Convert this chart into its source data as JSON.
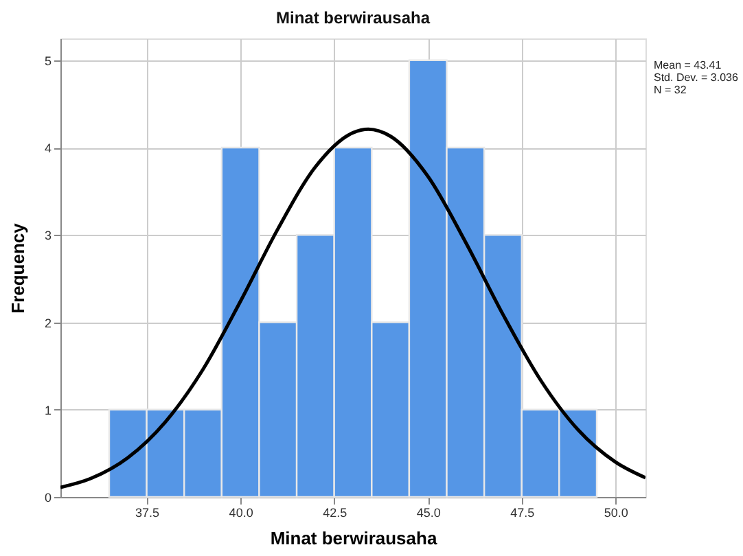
{
  "chart_data": {
    "type": "histogram",
    "title": "Minat berwirausaha",
    "xlabel": "Minat berwirausaha",
    "ylabel": "Frequency",
    "bins": [
      36.5,
      37.5,
      38.5,
      39.5,
      40.5,
      41.5,
      42.5,
      43.5,
      44.5,
      45.5,
      46.5,
      47.5,
      48.5,
      49.5
    ],
    "values": [
      1,
      1,
      1,
      4,
      2,
      3,
      4,
      2,
      5,
      4,
      3,
      1,
      1
    ],
    "color": "#5596e6",
    "series": [
      {
        "type": "line",
        "color": "#000000",
        "x": [
          35.2,
          36,
          37,
          38,
          39,
          40,
          41,
          42,
          43,
          43.41,
          44,
          45,
          46,
          47,
          48,
          49,
          50,
          50.8
        ],
        "values": [
          0.11,
          0.21,
          0.45,
          0.86,
          1.46,
          2.24,
          3.07,
          3.78,
          4.17,
          4.21,
          4.13,
          3.67,
          2.92,
          2.09,
          1.34,
          0.77,
          0.4,
          0.22
        ]
      }
    ],
    "xlim": [
      35.2,
      50.8
    ],
    "xticks": [
      37.5,
      {
        "value": 40,
        "label": "40.0"
      },
      42.5,
      {
        "value": 45,
        "label": "45.0"
      },
      47.5,
      {
        "value": 50,
        "label": "50.0"
      }
    ],
    "ylim": [
      0,
      5.25
    ],
    "yticks": [
      0,
      1,
      2,
      3,
      4,
      5
    ],
    "grid": true,
    "annotations": [
      "Mean = 43.41",
      "Std. Dev. = 3.036",
      "N = 32"
    ]
  }
}
